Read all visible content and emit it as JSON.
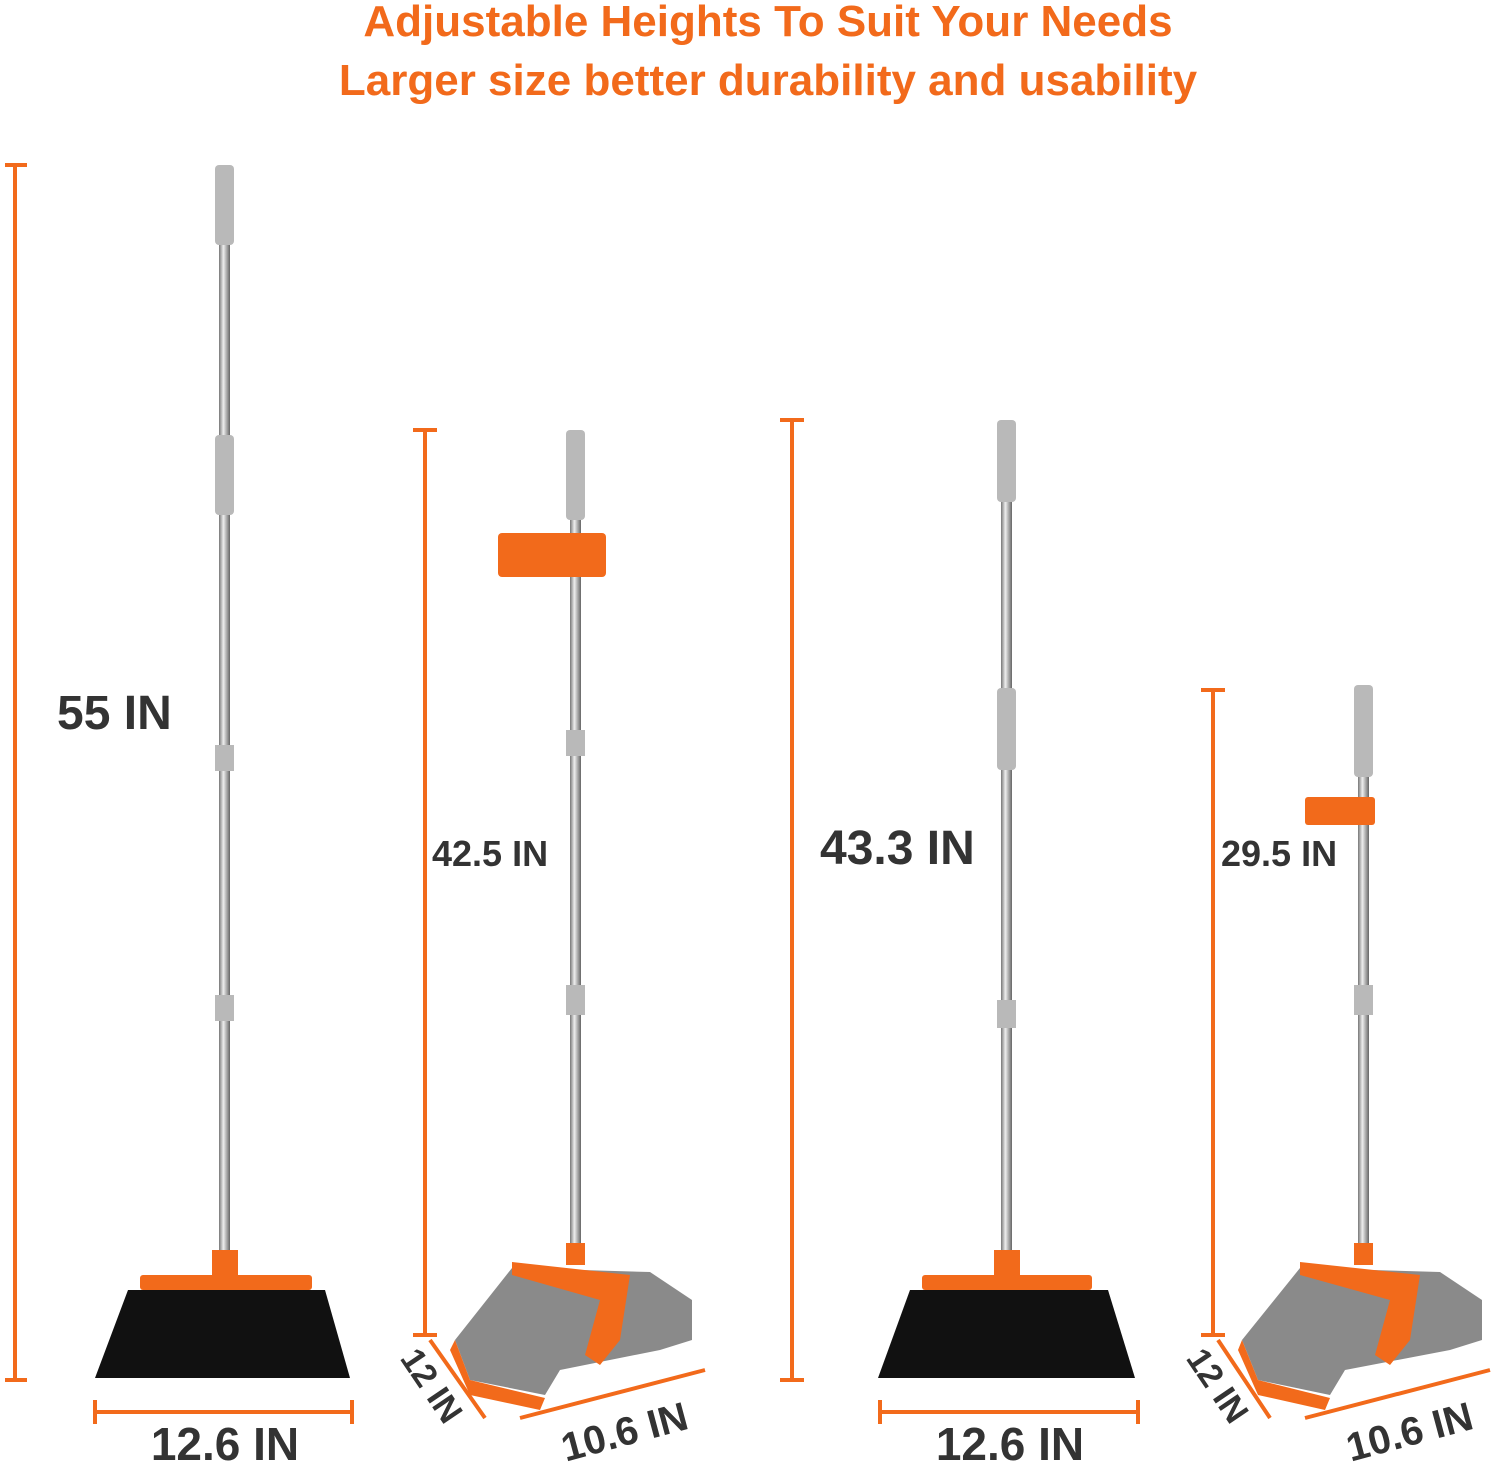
{
  "title": {
    "line1": "Adjustable Heights To Suit Your Needs",
    "line2": "Larger size better durability and usability"
  },
  "products": [
    {
      "name": "broom",
      "height": "55 IN",
      "width": "12.6 IN"
    },
    {
      "name": "dustpan",
      "height": "42.5 IN",
      "depth": "12 IN",
      "width": "10.6 IN"
    },
    {
      "name": "broom",
      "height": "43.3 IN",
      "width": "12.6 IN"
    },
    {
      "name": "dustpan",
      "height": "29.5 IN",
      "depth": "12 IN",
      "width": "10.6 IN"
    }
  ],
  "colors": {
    "accent": "#f26a1b",
    "text": "#333333",
    "grip": "#b9b9b9",
    "pan": "#8a8a8a",
    "bristle": "#111111"
  }
}
